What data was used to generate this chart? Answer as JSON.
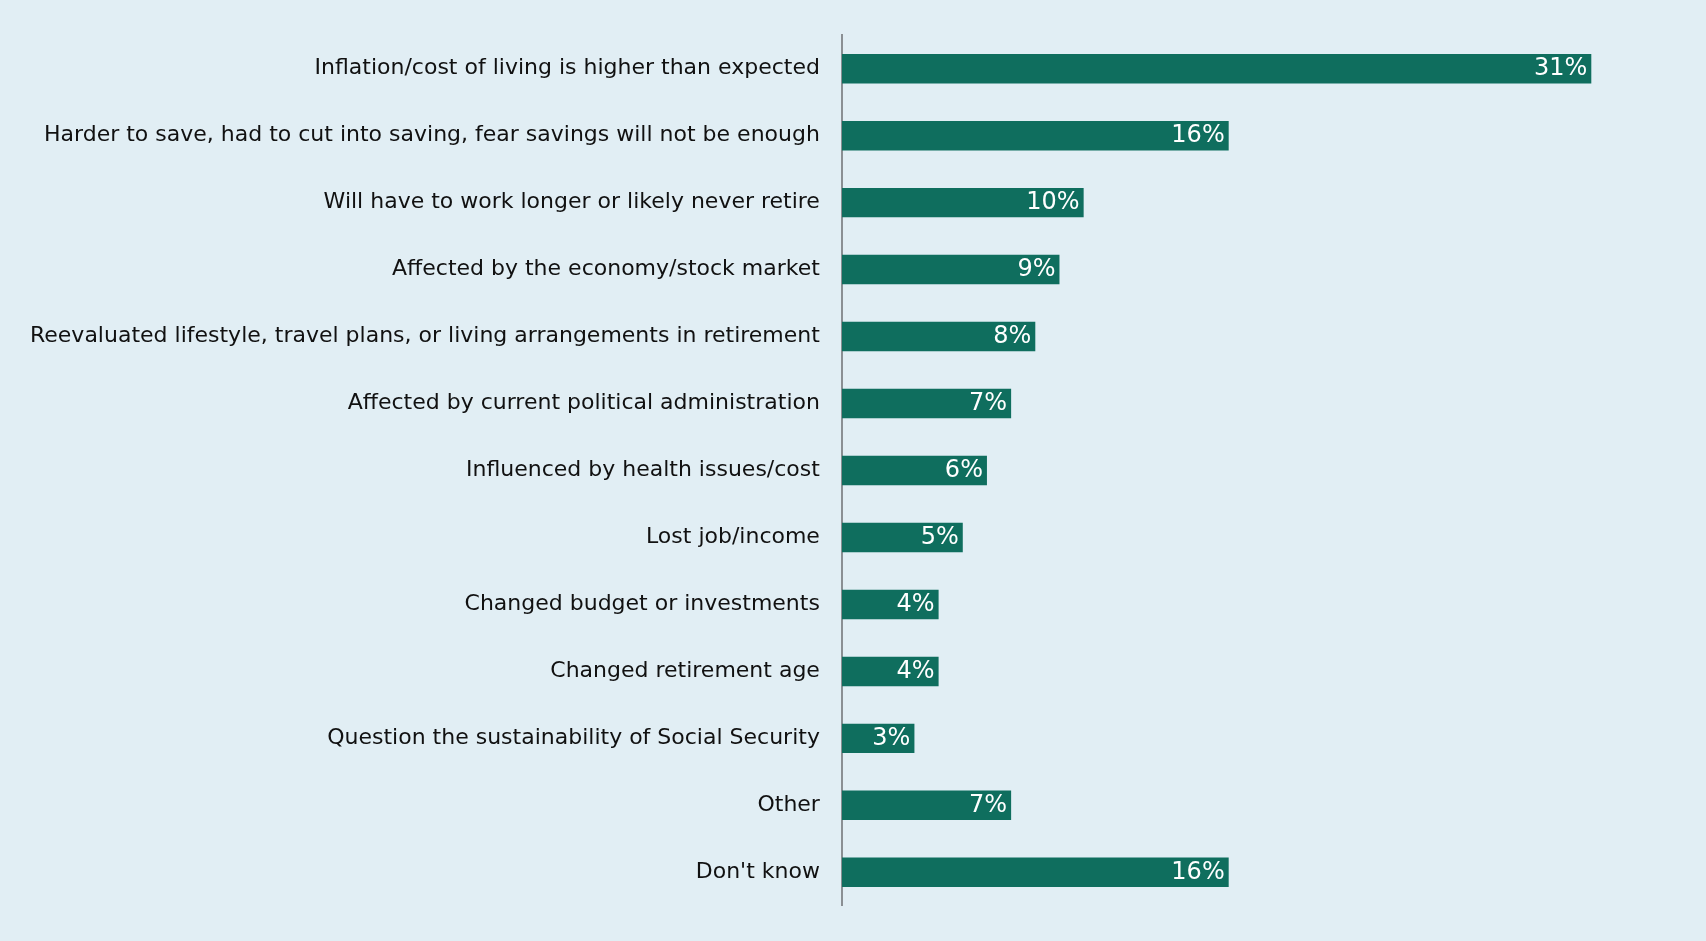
{
  "chart_data": {
    "type": "bar",
    "orientation": "horizontal",
    "categories": [
      "Inflation/cost of living is higher than expected",
      "Harder to save, had to cut into saving, fear savings will not be enough",
      "Will have to work longer or likely never retire",
      "Affected by the economy/stock market",
      "Reevaluated lifestyle, travel plans, or living arrangements in retirement",
      "Affected by current political administration",
      "Influenced by health issues/cost",
      "Lost job/income",
      "Changed budget or investments",
      "Changed retirement age",
      "Question the sustainability of Social Security",
      "Other",
      "Don't know"
    ],
    "values": [
      31,
      16,
      10,
      9,
      8,
      7,
      6,
      5,
      4,
      4,
      3,
      7,
      16
    ],
    "value_labels": [
      "31%",
      "16%",
      "10%",
      "9%",
      "8%",
      "7%",
      "6%",
      "5%",
      "4%",
      "4%",
      "3%",
      "7%",
      "16%"
    ],
    "color": "#0f6e5e"
  }
}
